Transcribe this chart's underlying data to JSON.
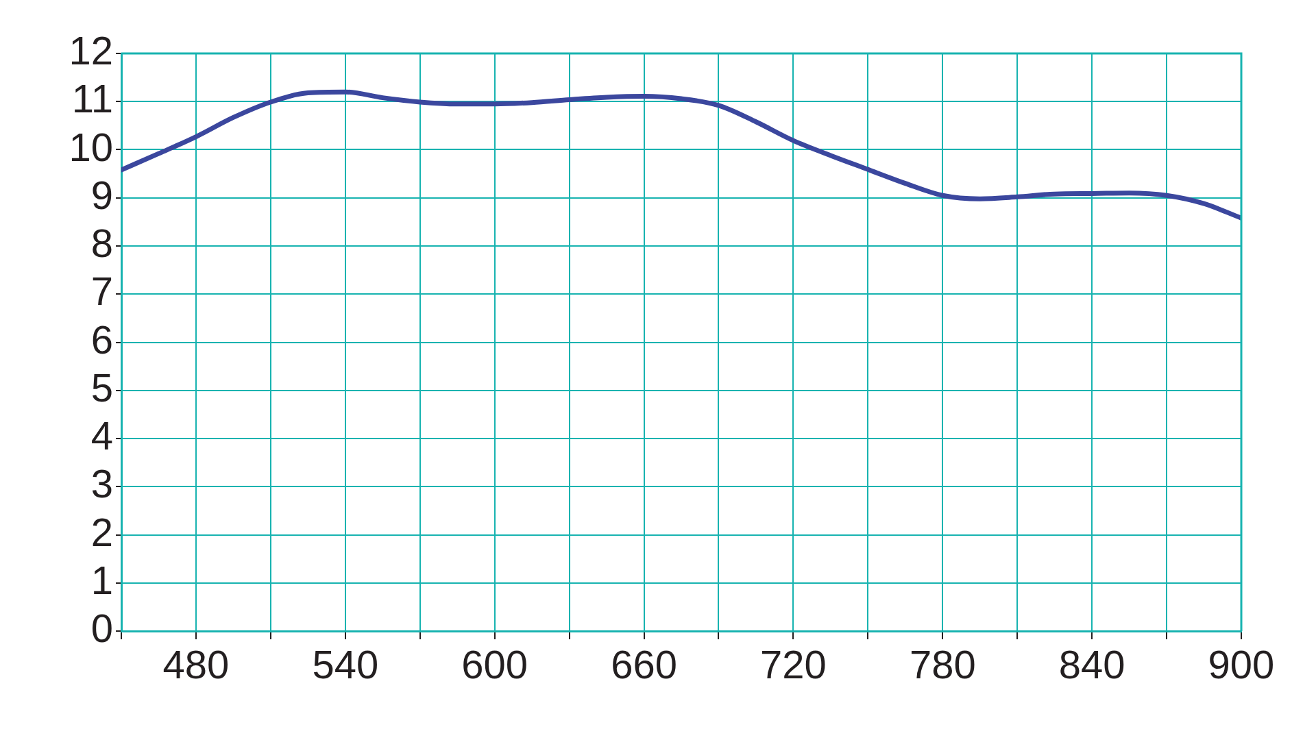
{
  "chart_data": {
    "type": "line",
    "color": "#3b479e",
    "marker": "none",
    "grid": true,
    "x": [
      450,
      465,
      480,
      495,
      510,
      525,
      540,
      555,
      570,
      585,
      600,
      615,
      630,
      645,
      660,
      675,
      690,
      705,
      720,
      735,
      750,
      765,
      780,
      795,
      810,
      825,
      840,
      855,
      870,
      885,
      900
    ],
    "values": [
      9.58,
      9.92,
      10.27,
      10.67,
      10.99,
      11.18,
      11.2,
      11.08,
      10.99,
      10.95,
      10.95,
      10.98,
      11.04,
      11.09,
      11.11,
      11.06,
      10.92,
      10.58,
      10.19,
      9.88,
      9.59,
      9.3,
      9.05,
      8.98,
      9.02,
      9.08,
      9.09,
      9.1,
      9.05,
      8.88,
      8.58
    ],
    "xlim": [
      450,
      900
    ],
    "xticks": [
      {
        "value": 450,
        "label": null
      },
      480,
      {
        "value": 510,
        "label": null
      },
      540,
      {
        "value": 570,
        "label": null
      },
      600,
      {
        "value": 630,
        "label": null
      },
      660,
      {
        "value": 690,
        "label": null
      },
      720,
      {
        "value": 750,
        "label": null
      },
      780,
      {
        "value": 810,
        "label": null
      },
      840,
      {
        "value": 870,
        "label": null
      },
      900
    ],
    "ylim": [
      0,
      12
    ],
    "yticks": [
      0,
      1,
      2,
      3,
      4,
      5,
      6,
      7,
      8,
      9,
      10,
      11,
      12
    ]
  }
}
